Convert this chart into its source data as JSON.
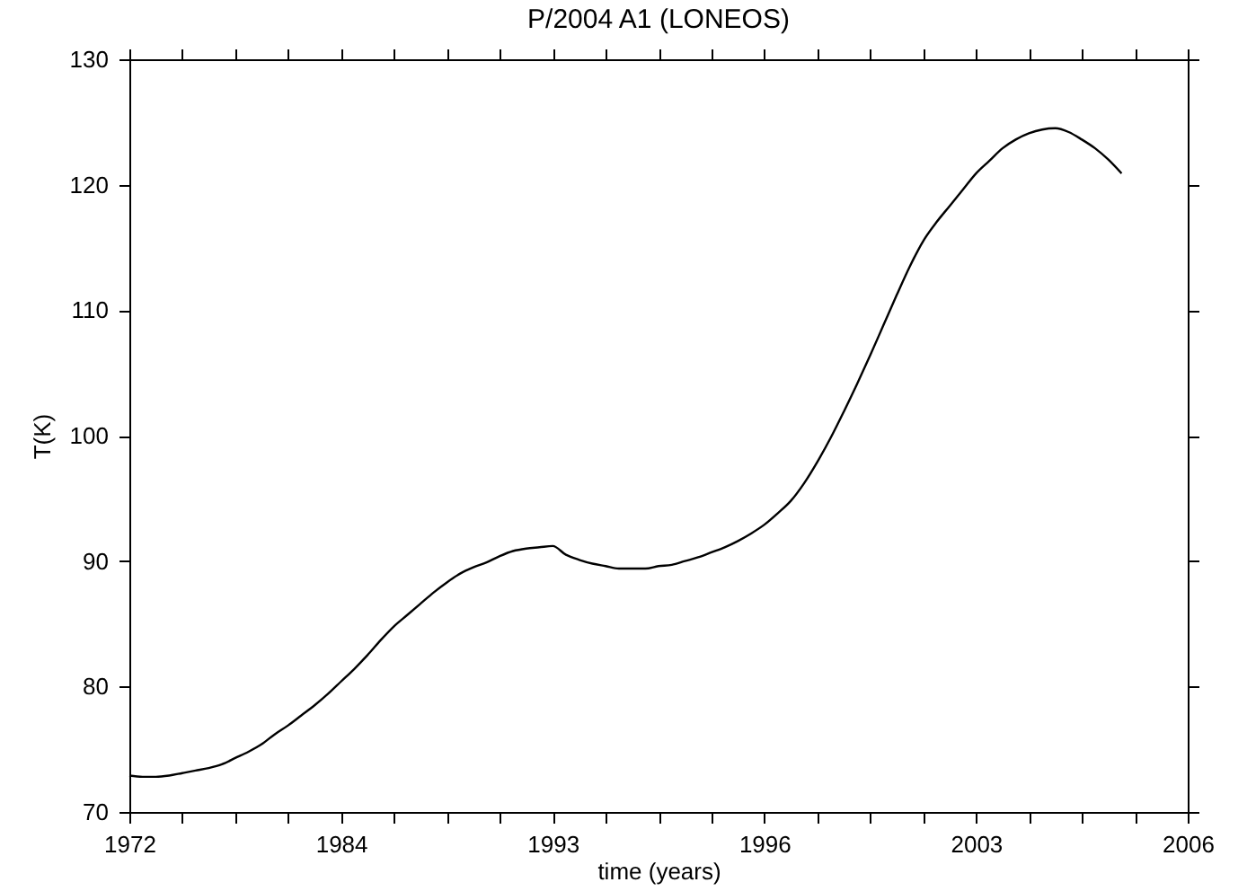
{
  "chart_data": {
    "type": "line",
    "title": "P/2004 A1 (LONEOS)",
    "xlabel": "time (years)",
    "ylabel": "T(K)",
    "categories": [
      "1972",
      null,
      null,
      null,
      null,
      null,
      null,
      null,
      null,
      null,
      null,
      null,
      null,
      null,
      null,
      null,
      "1984",
      null,
      null,
      null,
      null,
      null,
      null,
      null,
      null,
      null,
      null,
      null,
      null,
      null,
      null,
      null,
      "1993",
      null,
      null,
      null,
      null,
      null,
      null,
      null,
      null,
      null,
      null,
      null,
      null,
      null,
      null,
      null,
      "1996",
      null,
      null,
      null,
      null,
      null,
      null,
      null,
      null,
      null,
      null,
      null,
      null,
      null,
      null,
      null,
      "2003",
      null,
      null,
      null,
      null,
      null,
      null,
      null,
      null,
      null,
      null,
      null,
      null,
      null,
      null,
      null,
      "2006"
    ],
    "series": [
      {
        "color": "#000000",
        "values": [
          72.9,
          72.8,
          72.8,
          72.9,
          73.1,
          73.3,
          73.5,
          73.8,
          74.3,
          74.8,
          75.4,
          76.2,
          76.9,
          77.7,
          78.5,
          79.4,
          80.4,
          81.4,
          82.5,
          83.7,
          84.8,
          85.7,
          86.6,
          87.5,
          88.3,
          89.0,
          89.5,
          89.9,
          90.4,
          90.8,
          91.0,
          91.1,
          91.2,
          90.5,
          90.1,
          89.8,
          89.6,
          89.4,
          89.4,
          89.4,
          89.6,
          89.7,
          90.0,
          90.3,
          90.7,
          91.1,
          91.6,
          92.2,
          92.9,
          93.8,
          94.8,
          96.2,
          97.9,
          99.8,
          101.9,
          104.1,
          106.4,
          108.8,
          111.2,
          113.5,
          115.5,
          117.0,
          118.3,
          119.6,
          120.9,
          121.9,
          122.9,
          123.6,
          124.1,
          124.4,
          124.5,
          124.2,
          123.6,
          122.9,
          122.0,
          120.9,
          null,
          null,
          null,
          null,
          null
        ]
      }
    ],
    "ylim": [
      70,
      130
    ],
    "yticks": [
      70,
      80,
      90,
      100,
      110,
      120,
      130
    ],
    "grid": false,
    "marker": "none",
    "line_style": "solid"
  }
}
